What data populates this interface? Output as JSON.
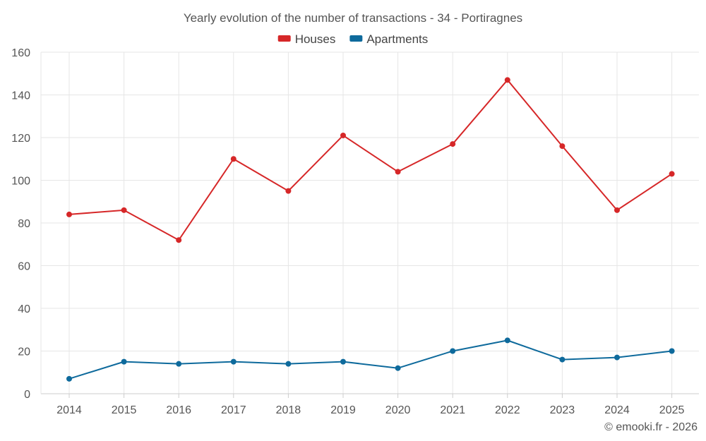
{
  "chart_data": {
    "type": "line",
    "title": "Yearly evolution of the number of transactions - 34 - Portiragnes",
    "categories": [
      "2014",
      "2015",
      "2016",
      "2017",
      "2018",
      "2019",
      "2020",
      "2021",
      "2022",
      "2023",
      "2024",
      "2025"
    ],
    "series": [
      {
        "name": "Houses",
        "color": "#d62728",
        "values": [
          84,
          86,
          72,
          110,
          95,
          121,
          104,
          117,
          147,
          116,
          86,
          103
        ]
      },
      {
        "name": "Apartments",
        "color": "#0e6a9c",
        "values": [
          7,
          15,
          14,
          15,
          14,
          15,
          12,
          20,
          25,
          16,
          17,
          20
        ]
      }
    ],
    "ylim": [
      0,
      160
    ],
    "yticks": [
      0,
      20,
      40,
      60,
      80,
      100,
      120,
      140,
      160
    ],
    "xlabel": "",
    "ylabel": "",
    "grid": true,
    "legend_position": "top-center"
  },
  "credit": "© emooki.fr - 2026"
}
